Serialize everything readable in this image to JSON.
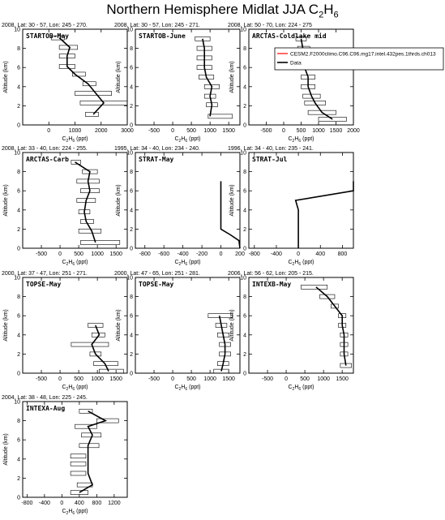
{
  "page": {
    "title": "Northern Hemisphere Midlat JJA C",
    "title_sub": "2",
    "title_tail": "H",
    "title_sub2": "6"
  },
  "axis_text": {
    "ylabel": "Altitude (km)",
    "xlabel_main": "C",
    "xlabel_sub1": "2",
    "xlabel_mid": "H",
    "xlabel_sub2": "6",
    "xlabel_tail": " (ppt)"
  },
  "legend": {
    "model_label": "CESM2.F2000climo.C96.C96.mg17.intel.432pes.1thrds.ch013",
    "data_label": "Data",
    "model_color": "#ff0000",
    "data_color": "#000000"
  },
  "chart_data": [
    {
      "type": "line",
      "header": "2008, Lat: 30 - 57, Lon: 245 - 270.",
      "name": "STARTOB-May",
      "xlim": [
        -1000,
        3000
      ],
      "xticks": [
        0,
        1000,
        2000,
        3000
      ],
      "ylim": [
        0,
        10
      ],
      "points": [
        [
          1700,
          1.1
        ],
        [
          2100,
          2.3
        ],
        [
          1800,
          3.3
        ],
        [
          1500,
          4.3
        ],
        [
          1000,
          5.3
        ],
        [
          700,
          6.1
        ],
        [
          700,
          7.2
        ],
        [
          800,
          8.1
        ],
        [
          400,
          9.1
        ]
      ],
      "bars": [
        [
          1400,
          1900
        ],
        [
          1200,
          3000
        ],
        [
          1000,
          2400
        ],
        [
          1300,
          1800
        ],
        [
          900,
          1400
        ],
        [
          400,
          1000
        ],
        [
          400,
          1000
        ],
        [
          400,
          1100
        ],
        [
          100,
          600
        ]
      ]
    },
    {
      "type": "line",
      "header": "2008, Lat: 30 - 57, Lon: 245 - 271.",
      "name": "STARTOB-June",
      "xlim": [
        -1000,
        1800
      ],
      "xticks": [
        -500,
        0,
        500,
        1000,
        1500
      ],
      "ylim": [
        0,
        10
      ],
      "points": [
        [
          1000,
          0.9
        ],
        [
          1050,
          2.1
        ],
        [
          1000,
          3.0
        ],
        [
          1050,
          4.0
        ],
        [
          900,
          5.0
        ],
        [
          850,
          6.0
        ],
        [
          850,
          7.0
        ],
        [
          850,
          8.0
        ],
        [
          800,
          9.0
        ]
      ],
      "bars": [
        [
          950,
          1600
        ],
        [
          900,
          1200
        ],
        [
          850,
          1150
        ],
        [
          850,
          1250
        ],
        [
          700,
          1100
        ],
        [
          650,
          1050
        ],
        [
          650,
          1050
        ],
        [
          650,
          1050
        ],
        [
          600,
          1000
        ]
      ]
    },
    {
      "type": "line",
      "header": "2008, Lat: 50 - 70, Lon: 224 - 275",
      "name": "ARCTAS-Coldlake mid",
      "xlim": [
        -1000,
        2000
      ],
      "xticks": [
        -500,
        0,
        500,
        1000,
        1500,
        2000
      ],
      "ylim": [
        0,
        10
      ],
      "points": [
        [
          1400,
          0.6
        ],
        [
          1100,
          1.3
        ],
        [
          900,
          2.3
        ],
        [
          800,
          3.0
        ],
        [
          700,
          4.0
        ],
        [
          700,
          5.0
        ],
        [
          600,
          6.0
        ],
        [
          600,
          7.0
        ],
        [
          550,
          8.0
        ],
        [
          500,
          9.0
        ]
      ],
      "bars": [
        [
          1000,
          1800
        ],
        [
          700,
          1500
        ],
        [
          600,
          1200
        ],
        [
          550,
          1050
        ],
        [
          500,
          900
        ],
        [
          500,
          900
        ],
        [
          450,
          800
        ],
        [
          450,
          800
        ],
        [
          400,
          750
        ],
        [
          350,
          650
        ]
      ]
    },
    {
      "type": "line",
      "header": "2008, Lat: 33 - 40, Lon: 224 - 255.",
      "name": "ARCTAS-Carb",
      "xlim": [
        -1000,
        1800
      ],
      "xticks": [
        -500,
        0,
        500,
        1000,
        1500
      ],
      "ylim": [
        0,
        10
      ],
      "points": [
        [
          950,
          0.6
        ],
        [
          850,
          1.8
        ],
        [
          700,
          2.8
        ],
        [
          650,
          3.8
        ],
        [
          700,
          5.0
        ],
        [
          800,
          6.0
        ],
        [
          750,
          7.0
        ],
        [
          800,
          8.0
        ],
        [
          400,
          9.0
        ]
      ],
      "bars": [
        [
          550,
          1600
        ],
        [
          500,
          1100
        ],
        [
          550,
          900
        ],
        [
          500,
          800
        ],
        [
          450,
          950
        ],
        [
          550,
          1050
        ],
        [
          450,
          1050
        ],
        [
          600,
          1000
        ],
        [
          300,
          550
        ]
      ]
    },
    {
      "type": "line",
      "header": "1995, Lat: 34 - 40, Lon: 234 - 240.",
      "name": "STRAT-May",
      "xlim": [
        -900,
        200
      ],
      "xticks": [
        -800,
        -600,
        -400,
        -200,
        0,
        200
      ],
      "ylim": [
        0,
        10
      ],
      "points": [
        [
          200,
          0
        ],
        [
          190,
          0.8
        ],
        [
          100,
          1.4
        ],
        [
          0,
          2.0
        ],
        [
          0,
          7.0
        ]
      ],
      "bars": []
    },
    {
      "type": "line",
      "header": "1996, Lat: 34 - 40, Lon: 235 - 241.",
      "name": "STRAT-Jul",
      "xlim": [
        -900,
        1000
      ],
      "xticks": [
        -800,
        -400,
        0,
        400,
        800
      ],
      "ylim": [
        0,
        10
      ],
      "points": [
        [
          0,
          0
        ],
        [
          0,
          2.0
        ],
        [
          0,
          4.0
        ],
        [
          -50,
          5.0
        ],
        [
          1000,
          6.0
        ],
        [
          1000,
          7.0
        ]
      ],
      "bars": []
    },
    {
      "type": "line",
      "header": "2000, Lat: 37 - 47, Lon: 251 - 271.",
      "name": "TOPSE-May",
      "xlim": [
        -1000,
        1800
      ],
      "xticks": [
        -500,
        0,
        500,
        1000,
        1500
      ],
      "ylim": [
        0,
        10
      ],
      "points": [
        [
          1300,
          0.2
        ],
        [
          1200,
          1.0
        ],
        [
          950,
          2.0
        ],
        [
          850,
          3.0
        ],
        [
          1050,
          4.0
        ],
        [
          950,
          5.0
        ]
      ],
      "bars": [
        [
          1050,
          1700
        ],
        [
          900,
          1550
        ],
        [
          800,
          1100
        ],
        [
          300,
          1300
        ],
        [
          850,
          1200
        ],
        [
          750,
          1150
        ]
      ]
    },
    {
      "type": "line",
      "header": "2000, Lat: 47 - 65, Lon: 251 - 281.",
      "name": "TOPSE-May",
      "xlim": [
        -1000,
        1800
      ],
      "xticks": [
        -500,
        0,
        500,
        1000,
        1500
      ],
      "ylim": [
        0,
        10
      ],
      "points": [
        [
          1300,
          0.2
        ],
        [
          1350,
          1.0
        ],
        [
          1400,
          2.0
        ],
        [
          1400,
          3.0
        ],
        [
          1350,
          4.0
        ],
        [
          1300,
          5.0
        ],
        [
          1250,
          6.0
        ]
      ],
      "bars": [
        [
          1100,
          1500
        ],
        [
          1200,
          1500
        ],
        [
          1250,
          1550
        ],
        [
          1250,
          1550
        ],
        [
          1200,
          1500
        ],
        [
          1150,
          1450
        ],
        [
          950,
          1600
        ]
      ]
    },
    {
      "type": "line",
      "header": "2006, Lat: 56 - 62, Lon: 205 - 215.",
      "name": "INTEXB-May",
      "xlim": [
        -1000,
        1800
      ],
      "xticks": [
        -500,
        0,
        500,
        1000,
        1500
      ],
      "ylim": [
        0,
        10
      ],
      "points": [
        [
          1600,
          0.8
        ],
        [
          1550,
          2.0
        ],
        [
          1550,
          3.0
        ],
        [
          1550,
          4.0
        ],
        [
          1500,
          5.0
        ],
        [
          1500,
          6.0
        ],
        [
          1300,
          7.0
        ],
        [
          1100,
          8.0
        ],
        [
          800,
          9.0
        ]
      ],
      "bars": [
        [
          1450,
          1750
        ],
        [
          1450,
          1650
        ],
        [
          1450,
          1650
        ],
        [
          1450,
          1650
        ],
        [
          1400,
          1600
        ],
        [
          1400,
          1600
        ],
        [
          1200,
          1400
        ],
        [
          900,
          1300
        ],
        [
          400,
          1100
        ]
      ]
    },
    {
      "type": "line",
      "header": "2004, Lat: 38 - 48, Lon: 225 - 245.",
      "name": "INTEXA-Aug",
      "xlim": [
        -900,
        1500
      ],
      "xticks": [
        -800,
        -400,
        0,
        400,
        800,
        1200
      ],
      "ylim": [
        0,
        10
      ],
      "points": [
        [
          400,
          0.5
        ],
        [
          700,
          1.3
        ],
        [
          600,
          2.5
        ],
        [
          600,
          3.5
        ],
        [
          600,
          4.3
        ],
        [
          600,
          5.4
        ],
        [
          700,
          6.5
        ],
        [
          600,
          7.4
        ],
        [
          1000,
          8.0
        ],
        [
          600,
          9.0
        ]
      ],
      "bars": [
        [
          200,
          600
        ],
        [
          350,
          700
        ],
        [
          200,
          550
        ],
        [
          200,
          550
        ],
        [
          200,
          550
        ],
        [
          400,
          850
        ],
        [
          450,
          900
        ],
        [
          300,
          800
        ],
        [
          800,
          1300
        ],
        [
          400,
          700
        ]
      ]
    }
  ]
}
